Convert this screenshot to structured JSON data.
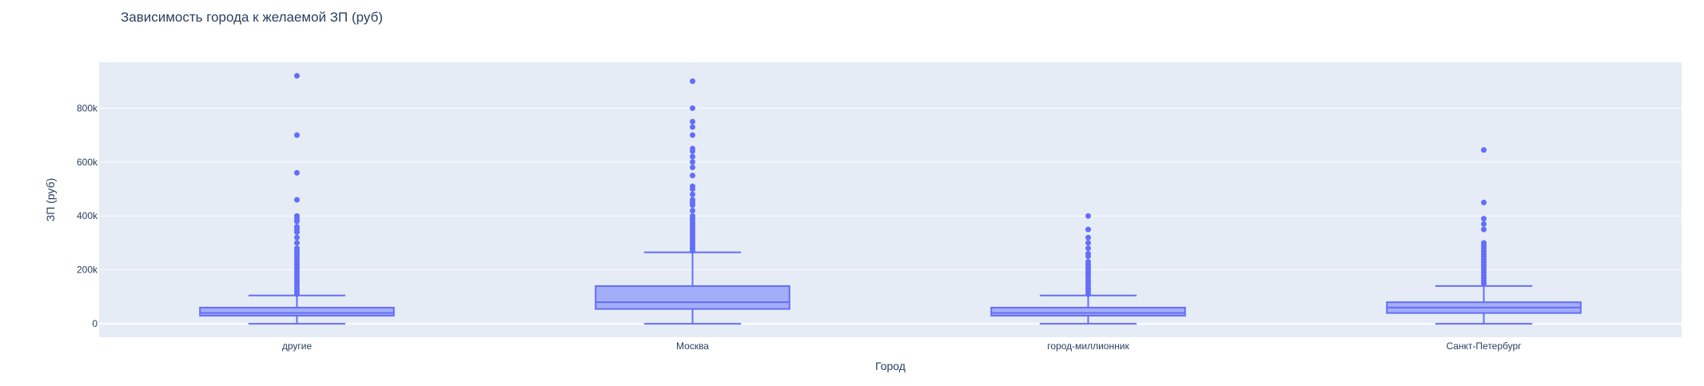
{
  "chart_data": {
    "type": "box",
    "title": "Зависимость города к желаемой ЗП (руб)",
    "xlabel": "Город",
    "ylabel": "ЗП (руб)",
    "ylim": [
      -50000,
      970000
    ],
    "y_ticks": [
      0,
      200000,
      400000,
      600000,
      800000
    ],
    "y_tick_labels": [
      "0",
      "200k",
      "400k",
      "600k",
      "800k"
    ],
    "grid": true,
    "colors": {
      "box": "#636efa",
      "box_fill": "rgba(99,110,250,0.5)",
      "plot_bg": "#e5ecf6",
      "grid": "#ffffff"
    },
    "categories": [
      "другие",
      "Москва",
      "город-миллионник",
      "Санкт-Петербург"
    ],
    "boxes": [
      {
        "category": "другие",
        "min": 0,
        "q1": 30000,
        "median": 40000,
        "q3": 60000,
        "upper_fence": 105000,
        "outliers": [
          110000,
          120000,
          130000,
          140000,
          150000,
          160000,
          170000,
          180000,
          190000,
          200000,
          210000,
          220000,
          230000,
          240000,
          250000,
          260000,
          270000,
          280000,
          300000,
          320000,
          340000,
          350000,
          360000,
          380000,
          390000,
          400000,
          460000,
          560000,
          700000,
          920000
        ]
      },
      {
        "category": "Москва",
        "min": 0,
        "q1": 55000,
        "median": 80000,
        "q3": 140000,
        "upper_fence": 265000,
        "outliers": [
          270000,
          280000,
          290000,
          300000,
          310000,
          320000,
          330000,
          340000,
          350000,
          360000,
          370000,
          380000,
          390000,
          400000,
          420000,
          440000,
          450000,
          460000,
          480000,
          500000,
          510000,
          550000,
          580000,
          600000,
          620000,
          640000,
          650000,
          700000,
          730000,
          750000,
          800000,
          900000
        ]
      },
      {
        "category": "город-миллионник",
        "min": 0,
        "q1": 30000,
        "median": 40000,
        "q3": 60000,
        "upper_fence": 105000,
        "outliers": [
          110000,
          120000,
          130000,
          140000,
          150000,
          160000,
          170000,
          180000,
          190000,
          200000,
          210000,
          220000,
          230000,
          250000,
          260000,
          280000,
          300000,
          320000,
          350000,
          400000
        ]
      },
      {
        "category": "Санкт-Петербург",
        "min": 0,
        "q1": 40000,
        "median": 60000,
        "q3": 80000,
        "upper_fence": 140000,
        "outliers": [
          150000,
          160000,
          170000,
          180000,
          190000,
          200000,
          210000,
          220000,
          230000,
          240000,
          250000,
          260000,
          270000,
          280000,
          290000,
          300000,
          350000,
          370000,
          390000,
          450000,
          645000
        ]
      }
    ]
  }
}
